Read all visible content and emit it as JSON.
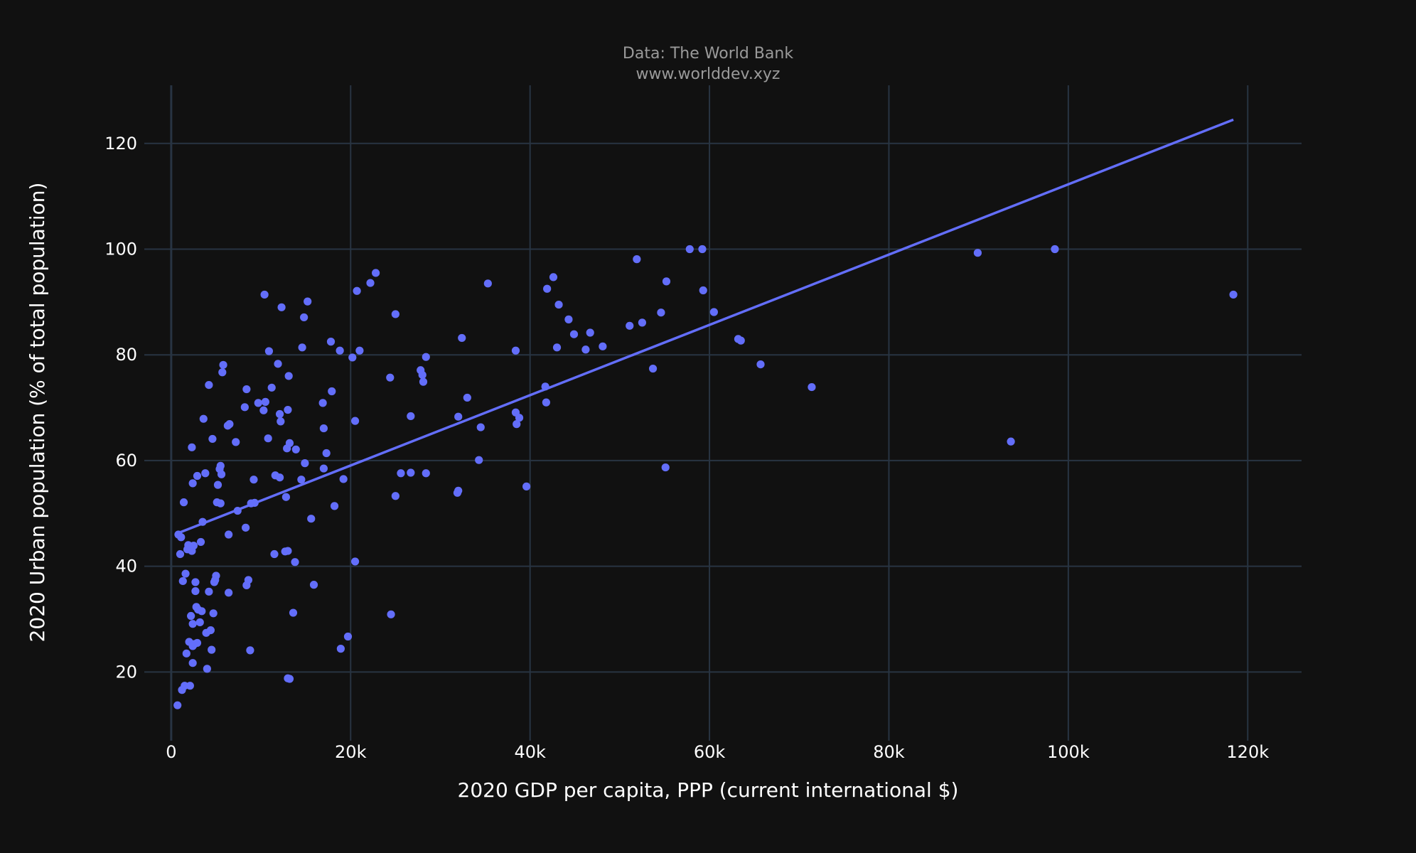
{
  "chart_data": {
    "type": "scatter",
    "title": "Data: The World Bank",
    "subtitle": "www.worlddev.xyz",
    "xlabel": "2020 GDP per capita, PPP (current international $)",
    "ylabel": "2020 Urban population (% of total population)",
    "xlim": [
      -3000,
      126000
    ],
    "ylim": [
      7,
      131
    ],
    "x_ticks": [
      0,
      20000,
      40000,
      60000,
      80000,
      100000,
      120000
    ],
    "x_tick_labels": [
      "0",
      "20k",
      "40k",
      "60k",
      "80k",
      "100k",
      "120k"
    ],
    "y_ticks": [
      20,
      40,
      60,
      80,
      100,
      120
    ],
    "y_tick_labels": [
      "20",
      "40",
      "60",
      "80",
      "100",
      "120"
    ],
    "grid": true,
    "colors": {
      "background": "#111111",
      "grid": "#283442",
      "marker": "#636efa",
      "text": "#ffffff",
      "title": "#9a9a9a"
    },
    "trendline": {
      "x": [
        800,
        118400
      ],
      "y": [
        46.3,
        124.5
      ]
    },
    "points": [
      [
        700,
        13.7
      ],
      [
        800,
        46
      ],
      [
        1000,
        42.3
      ],
      [
        1100,
        45.5
      ],
      [
        1200,
        16.6
      ],
      [
        1300,
        37.2
      ],
      [
        1400,
        52.1
      ],
      [
        1500,
        17.4
      ],
      [
        1600,
        38.6
      ],
      [
        1700,
        23.5
      ],
      [
        1800,
        43.2
      ],
      [
        1900,
        44
      ],
      [
        2000,
        25.7
      ],
      [
        2100,
        17.4
      ],
      [
        2200,
        30.6
      ],
      [
        2300,
        62.5
      ],
      [
        2300,
        42.9
      ],
      [
        2400,
        55.7
      ],
      [
        2400,
        29.1
      ],
      [
        2400,
        24.9
      ],
      [
        2400,
        21.7
      ],
      [
        2500,
        43.9
      ],
      [
        2600,
        25.3
      ],
      [
        2700,
        37
      ],
      [
        2700,
        35.3
      ],
      [
        2800,
        32.3
      ],
      [
        2900,
        57.1
      ],
      [
        2900,
        25.5
      ],
      [
        3000,
        31.8
      ],
      [
        3200,
        29.4
      ],
      [
        3300,
        44.6
      ],
      [
        3400,
        31.5
      ],
      [
        3500,
        48.4
      ],
      [
        3600,
        67.9
      ],
      [
        3800,
        57.6
      ],
      [
        3900,
        27.4
      ],
      [
        4000,
        20.6
      ],
      [
        4200,
        74.3
      ],
      [
        4200,
        35.2
      ],
      [
        4400,
        27.9
      ],
      [
        4500,
        24.2
      ],
      [
        4600,
        64.1
      ],
      [
        4700,
        31.1
      ],
      [
        4800,
        37
      ],
      [
        4900,
        37.4
      ],
      [
        5000,
        38.2
      ],
      [
        5100,
        52.1
      ],
      [
        5200,
        55.4
      ],
      [
        5400,
        58.4
      ],
      [
        5500,
        51.9
      ],
      [
        5500,
        59
      ],
      [
        5600,
        57.4
      ],
      [
        5700,
        76.7
      ],
      [
        5800,
        78.1
      ],
      [
        6300,
        66.6
      ],
      [
        6400,
        46
      ],
      [
        6500,
        66.9
      ],
      [
        6400,
        35
      ],
      [
        7200,
        63.5
      ],
      [
        7400,
        50.5
      ],
      [
        8200,
        70.1
      ],
      [
        8300,
        47.3
      ],
      [
        8400,
        36.4
      ],
      [
        8400,
        73.5
      ],
      [
        8600,
        37.4
      ],
      [
        8800,
        24.1
      ],
      [
        8900,
        51.9
      ],
      [
        9200,
        56.4
      ],
      [
        9300,
        52
      ],
      [
        9700,
        70.9
      ],
      [
        10300,
        69.5
      ],
      [
        10500,
        71.1
      ],
      [
        10400,
        91.4
      ],
      [
        10800,
        64.2
      ],
      [
        10900,
        80.7
      ],
      [
        11200,
        73.8
      ],
      [
        11500,
        42.3
      ],
      [
        11600,
        57.2
      ],
      [
        11900,
        78.3
      ],
      [
        12100,
        56.8
      ],
      [
        12100,
        68.8
      ],
      [
        12200,
        67.4
      ],
      [
        12300,
        89
      ],
      [
        12700,
        42.8
      ],
      [
        12800,
        53.1
      ],
      [
        13000,
        69.6
      ],
      [
        12900,
        62.3
      ],
      [
        13100,
        76
      ],
      [
        13200,
        63.3
      ],
      [
        13600,
        31.2
      ],
      [
        13800,
        40.8
      ],
      [
        13900,
        62.1
      ],
      [
        13000,
        42.9
      ],
      [
        13000,
        18.8
      ],
      [
        13200,
        18.7
      ],
      [
        14500,
        56.4
      ],
      [
        14600,
        81.4
      ],
      [
        14800,
        87.1
      ],
      [
        14900,
        59.5
      ],
      [
        15200,
        90.1
      ],
      [
        15600,
        49
      ],
      [
        15900,
        36.5
      ],
      [
        16900,
        70.9
      ],
      [
        17000,
        58.5
      ],
      [
        17000,
        66.1
      ],
      [
        17300,
        61.4
      ],
      [
        17800,
        82.5
      ],
      [
        17900,
        73.1
      ],
      [
        18200,
        51.4
      ],
      [
        18800,
        80.8
      ],
      [
        18900,
        24.4
      ],
      [
        19200,
        56.5
      ],
      [
        19700,
        26.7
      ],
      [
        20200,
        79.5
      ],
      [
        20500,
        67.5
      ],
      [
        20500,
        40.9
      ],
      [
        20700,
        92.1
      ],
      [
        21000,
        80.8
      ],
      [
        22200,
        93.6
      ],
      [
        22800,
        95.5
      ],
      [
        24400,
        75.7
      ],
      [
        24500,
        30.9
      ],
      [
        25000,
        53.3
      ],
      [
        25000,
        87.7
      ],
      [
        25600,
        57.6
      ],
      [
        26700,
        57.7
      ],
      [
        26700,
        68.4
      ],
      [
        27800,
        77.1
      ],
      [
        28000,
        76.2
      ],
      [
        28100,
        74.9
      ],
      [
        28400,
        79.6
      ],
      [
        28400,
        57.6
      ],
      [
        31900,
        53.9
      ],
      [
        32000,
        54.3
      ],
      [
        32000,
        68.3
      ],
      [
        32400,
        83.2
      ],
      [
        33000,
        71.9
      ],
      [
        34300,
        60.1
      ],
      [
        34500,
        66.3
      ],
      [
        35300,
        93.5
      ],
      [
        38400,
        80.8
      ],
      [
        38400,
        69.1
      ],
      [
        38500,
        66.9
      ],
      [
        38800,
        68.1
      ],
      [
        39600,
        55.1
      ],
      [
        41700,
        74
      ],
      [
        41800,
        71
      ],
      [
        41900,
        92.5
      ],
      [
        42600,
        94.7
      ],
      [
        43000,
        81.4
      ],
      [
        43200,
        89.5
      ],
      [
        44300,
        86.7
      ],
      [
        44900,
        83.9
      ],
      [
        46200,
        81
      ],
      [
        46700,
        84.2
      ],
      [
        48100,
        81.6
      ],
      [
        51100,
        85.5
      ],
      [
        51900,
        98.1
      ],
      [
        52500,
        86.1
      ],
      [
        53700,
        77.4
      ],
      [
        54600,
        88
      ],
      [
        55100,
        58.7
      ],
      [
        55200,
        93.9
      ],
      [
        57800,
        100
      ],
      [
        59200,
        100
      ],
      [
        59300,
        92.2
      ],
      [
        60500,
        88.1
      ],
      [
        63200,
        83
      ],
      [
        63500,
        82.7
      ],
      [
        65700,
        78.2
      ],
      [
        71400,
        73.9
      ],
      [
        89900,
        99.3
      ],
      [
        93600,
        63.6
      ],
      [
        98500,
        100
      ],
      [
        118400,
        91.4
      ]
    ]
  }
}
